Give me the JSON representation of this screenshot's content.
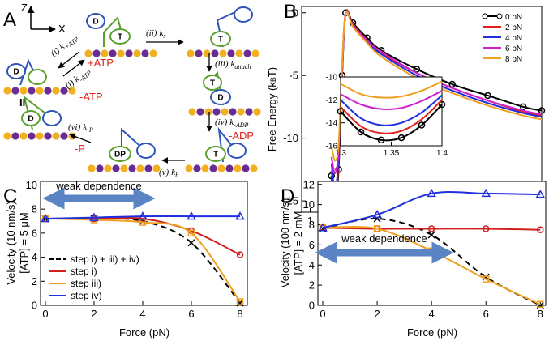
{
  "diagram": {
    "panel_label": "A",
    "axes": {
      "z": "Z",
      "x": "X"
    },
    "species": {
      "plus_atp": "+ATP",
      "minus_atp": "-ATP",
      "minus_adp": "-ADP",
      "minus_p": "-P"
    },
    "state_label": "II",
    "heads": [
      "D",
      "T",
      "T",
      "T",
      "D",
      "T",
      "DP",
      "D",
      "D"
    ],
    "steps": [
      {
        "num": "(ii)",
        "k": "k",
        "sub": "s"
      },
      {
        "num": "(iii)",
        "k": "k",
        "sub": "attach"
      },
      {
        "num": "(iv)",
        "k": "k",
        "sub": "-ADP"
      },
      {
        "num": "(v)",
        "k": "k",
        "sub": "h"
      },
      {
        "num": "(vi)",
        "k": "k",
        "sub": "-P"
      },
      {
        "num": "(i)",
        "k": "k",
        "sub": "+ATP"
      },
      {
        "num": "(i)",
        "k": "k",
        "sub": "-ATP"
      }
    ]
  },
  "chart_data": [
    {
      "type": "line",
      "panel_label": "B",
      "xlabel": {
        "main": "d",
        "sup": "COM",
        "sub": "kin-ATP",
        "unit": "(nm)"
      },
      "ylabel": {
        "pre": "Free Energy (k",
        "sub": "B",
        "post": "T)"
      },
      "x": [
        1.3,
        1.35,
        1.4,
        1.45,
        1.5,
        1.6,
        1.8,
        2.0,
        2.5,
        3.0,
        3.5,
        4.0,
        4.26
      ],
      "xlim": [
        0.88,
        4.26
      ],
      "xticks": [
        1,
        2,
        3,
        4
      ],
      "ylim": [
        -15.9,
        0.5
      ],
      "yticks": [
        -15,
        -10,
        -5,
        0
      ],
      "legend": "upper right",
      "series": [
        {
          "name": "0 pN",
          "color": "#000000",
          "marker": "circle",
          "values": [
            -13,
            -15.5,
            -12.5,
            -5,
            0,
            -0.8,
            -2,
            -3,
            -4.5,
            -5.7,
            -6.6,
            -7.5,
            -7.8
          ]
        },
        {
          "name": "2 pN",
          "color": "#e0201b",
          "values": [
            -12.6,
            -14.9,
            -12,
            -4.8,
            0,
            -0.9,
            -2.2,
            -3.2,
            -4.8,
            -6,
            -7,
            -7.9,
            -8.2
          ]
        },
        {
          "name": "4 pN",
          "color": "#1f2fe0",
          "values": [
            -12,
            -14.2,
            -11.5,
            -4.5,
            0,
            -1,
            -2.3,
            -3.3,
            -5,
            -6.2,
            -7.2,
            -8,
            -8.3
          ]
        },
        {
          "name": "6 pN",
          "color": "#d020d0",
          "values": [
            -11.5,
            -12.8,
            -11,
            -4.3,
            0,
            -1,
            -2.2,
            -3.1,
            -4.8,
            -6,
            -7,
            -7.8,
            -8.1
          ]
        },
        {
          "name": "8 pN",
          "color": "#f0a020",
          "values": [
            -10.6,
            -11.8,
            -10.5,
            -4.2,
            0,
            -1.1,
            -2.4,
            -3.5,
            -5.2,
            -6.4,
            -7.4,
            -8.2,
            -8.5
          ]
        }
      ]
    },
    {
      "type": "line",
      "x": [
        1.3,
        1.32,
        1.34,
        1.36,
        1.38,
        1.4
      ],
      "xlim": [
        1.3,
        1.4
      ],
      "xticks": [
        1.3,
        1.35,
        1.4
      ],
      "ylim": [
        -16,
        -10
      ],
      "yticks": [
        -16,
        -14,
        -12,
        -10
      ],
      "series": [
        {
          "color": "#000000",
          "marker": "circle",
          "values": [
            -13,
            -14.8,
            -15.5,
            -15.3,
            -14.2,
            -12.4
          ]
        },
        {
          "color": "#e0201b",
          "values": [
            -12.6,
            -14.3,
            -14.9,
            -14.7,
            -13.7,
            -12
          ]
        },
        {
          "color": "#1f2fe0",
          "values": [
            -12,
            -13.6,
            -14.2,
            -14,
            -13.1,
            -11.6
          ]
        },
        {
          "color": "#d020d0",
          "values": [
            -11.5,
            -12.4,
            -12.8,
            -12.7,
            -12.1,
            -11.2
          ]
        },
        {
          "color": "#f0a020",
          "values": [
            -10.6,
            -11.5,
            -11.8,
            -11.7,
            -11.2,
            -10.4
          ]
        }
      ]
    },
    {
      "type": "line",
      "panel_label": "C",
      "xlabel": "Force (pN)",
      "ylabel": [
        "Velocity (10 nm/s)",
        "[ATP] = 5 μM"
      ],
      "annotation": "weak dependence",
      "x": [
        0,
        2,
        4,
        6,
        8
      ],
      "xlim": [
        -0.2,
        8.3
      ],
      "xticks": [
        0,
        2,
        4,
        6,
        8
      ],
      "ylim": [
        0,
        10.3
      ],
      "yticks": [
        0,
        2,
        4,
        6,
        8,
        10
      ],
      "legend": "lower left",
      "series": [
        {
          "name": "step i) + iii) + iv)",
          "color": "#000000",
          "dash": true,
          "marker": "x",
          "values": [
            7.2,
            7.2,
            7.0,
            5.2,
            0.2
          ]
        },
        {
          "name": "step i)",
          "color": "#d0201b",
          "marker": "circle",
          "values": [
            7.2,
            7.2,
            7.2,
            6.2,
            4.2
          ]
        },
        {
          "name": "step iii)",
          "color": "#f0a020",
          "marker": "square",
          "values": [
            7.2,
            7.1,
            6.9,
            6.0,
            0.3
          ]
        },
        {
          "name": "step iv)",
          "color": "#1f2fe0",
          "marker": "triangle",
          "values": [
            7.2,
            7.3,
            7.4,
            7.4,
            7.4
          ]
        }
      ]
    },
    {
      "type": "line",
      "panel_label": "D",
      "xlabel": "Force (pN)",
      "ylabel": [
        "Velocity (100 nm/s)",
        "[ATP] = 2 mM"
      ],
      "annotation": "weak dependence",
      "x": [
        0,
        2,
        4,
        6,
        8
      ],
      "xlim": [
        -0.18,
        8.2
      ],
      "xticks": [
        0,
        2,
        4,
        6,
        8
      ],
      "ylim": [
        0,
        12.3
      ],
      "yticks": [
        0,
        2,
        4,
        6,
        8,
        10,
        12
      ],
      "series": [
        {
          "color": "#000000",
          "dash": true,
          "marker": "x",
          "values": [
            7.6,
            8.6,
            7.0,
            2.8,
            0
          ]
        },
        {
          "color": "#d0201b",
          "marker": "circle",
          "values": [
            7.7,
            7.6,
            7.6,
            7.6,
            7.5
          ]
        },
        {
          "color": "#f0a020",
          "marker": "square",
          "values": [
            7.7,
            7.6,
            5.4,
            2.6,
            0.1
          ]
        },
        {
          "color": "#1f2fe0",
          "marker": "triangle",
          "values": [
            7.7,
            9.0,
            11.1,
            11.1,
            11.0
          ]
        }
      ]
    }
  ]
}
